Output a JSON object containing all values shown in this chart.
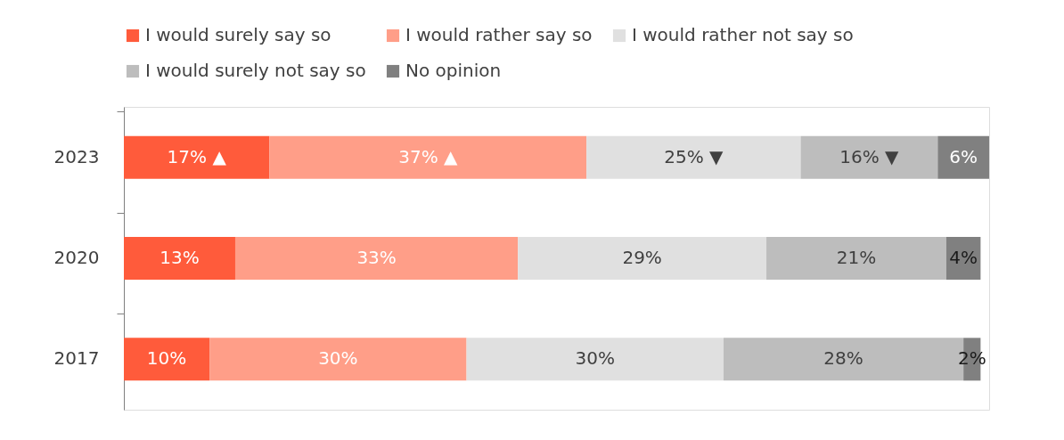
{
  "chart_data": {
    "type": "bar",
    "orientation": "horizontal",
    "stacked": true,
    "legend": "top",
    "categories": [
      "2023",
      "2020",
      "2017"
    ],
    "series": [
      {
        "name": "I would surely say so",
        "color": "#ff5b3b",
        "values": [
          17,
          13,
          10
        ],
        "value_labels": [
          "17% ▲",
          "13%",
          "10%"
        ]
      },
      {
        "name": "I would rather say so",
        "color": "#ff9e88",
        "values": [
          37,
          33,
          30
        ],
        "value_labels": [
          "37% ▲",
          "33%",
          "30%"
        ]
      },
      {
        "name": "I would rather not say so",
        "color": "#e0e0e0",
        "values": [
          25,
          29,
          30
        ],
        "value_labels": [
          "25% ▼",
          "29%",
          "30%"
        ]
      },
      {
        "name": "I would surely not say so",
        "color": "#bdbdbd",
        "values": [
          16,
          21,
          28
        ],
        "value_labels": [
          "16% ▼",
          "21%",
          "28%"
        ]
      },
      {
        "name": "No opinion",
        "color": "#808080",
        "values": [
          6,
          4,
          2
        ],
        "value_labels": [
          "6%",
          "4%",
          "2%"
        ]
      }
    ]
  }
}
